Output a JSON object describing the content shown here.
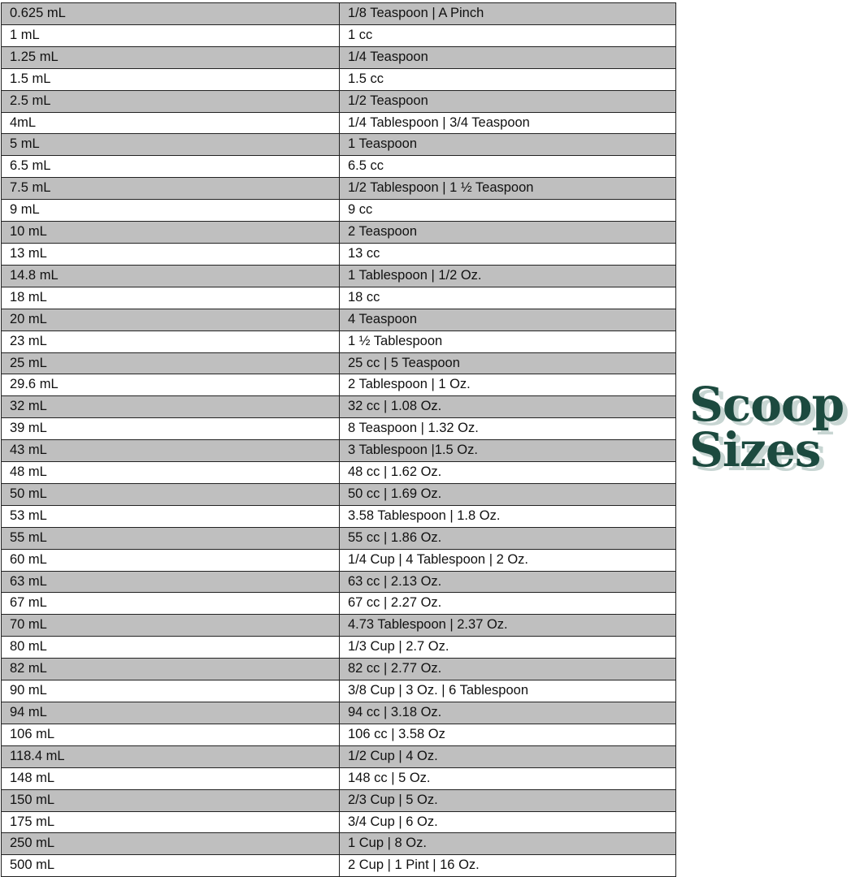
{
  "title": {
    "line1": "Scoop",
    "line2": "Sizes",
    "color": "#1c4a3f",
    "shadow_color": "#c7d5d2"
  },
  "row_colors": {
    "odd": "#bfbfbf",
    "even": "#ffffff"
  },
  "rows": [
    [
      "0.625 mL",
      "1/8 Teaspoon | A Pinch"
    ],
    [
      "1 mL",
      "1 cc"
    ],
    [
      "1.25 mL",
      "1/4 Teaspoon"
    ],
    [
      "1.5 mL",
      "1.5 cc"
    ],
    [
      "2.5 mL",
      "1/2 Teaspoon"
    ],
    [
      "4mL",
      "1/4 Tablespoon | 3/4 Teaspoon"
    ],
    [
      "5 mL",
      "1 Teaspoon"
    ],
    [
      "6.5 mL",
      "6.5 cc"
    ],
    [
      "7.5 mL",
      "1/2 Tablespoon | 1 ½ Teaspoon"
    ],
    [
      "9 mL",
      "9 cc"
    ],
    [
      "10 mL",
      "2 Teaspoon"
    ],
    [
      "13 mL",
      "13 cc"
    ],
    [
      "14.8 mL",
      "1 Tablespoon | 1/2 Oz."
    ],
    [
      "18 mL",
      "18 cc"
    ],
    [
      "20 mL",
      "4 Teaspoon"
    ],
    [
      "23 mL",
      "1 ½ Tablespoon"
    ],
    [
      "25 mL",
      "25 cc | 5 Teaspoon"
    ],
    [
      "29.6 mL",
      "2 Tablespoon | 1 Oz."
    ],
    [
      "32 mL",
      "32 cc | 1.08 Oz."
    ],
    [
      "39 mL",
      "8 Teaspoon | 1.32 Oz."
    ],
    [
      "43 mL",
      "3 Tablespoon |1.5 Oz."
    ],
    [
      "48 mL",
      "48 cc | 1.62 Oz."
    ],
    [
      "50 mL",
      "50 cc | 1.69 Oz."
    ],
    [
      "53 mL",
      "3.58 Tablespoon | 1.8 Oz."
    ],
    [
      "55 mL",
      "55 cc | 1.86 Oz."
    ],
    [
      "60 mL",
      "1/4 Cup | 4 Tablespoon | 2 Oz."
    ],
    [
      "63 mL",
      "63 cc | 2.13 Oz."
    ],
    [
      "67 mL",
      "67 cc | 2.27 Oz."
    ],
    [
      "70 mL",
      "4.73 Tablespoon | 2.37 Oz."
    ],
    [
      "80 mL",
      "1/3 Cup | 2.7 Oz."
    ],
    [
      "82 mL",
      "82 cc | 2.77 Oz."
    ],
    [
      "90 mL",
      "3/8 Cup | 3 Oz. | 6 Tablespoon"
    ],
    [
      "94 mL",
      "94 cc | 3.18 Oz."
    ],
    [
      "106 mL",
      "106 cc | 3.58 Oz"
    ],
    [
      "118.4 mL",
      "1/2 Cup | 4 Oz."
    ],
    [
      "148 mL",
      "148 cc | 5 Oz."
    ],
    [
      "150 mL",
      "2/3 Cup | 5 Oz."
    ],
    [
      "175 mL",
      "3/4 Cup | 6 Oz."
    ],
    [
      "250 mL",
      "1 Cup | 8 Oz."
    ],
    [
      "500 mL",
      "2 Cup | 1 Pint | 16 Oz."
    ]
  ]
}
